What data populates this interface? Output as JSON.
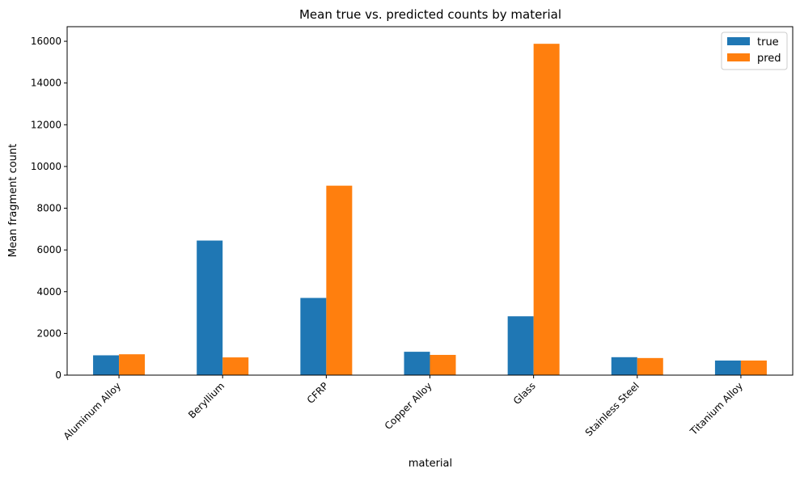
{
  "chart_data": {
    "type": "bar",
    "title": "Mean true vs. predicted counts by material",
    "xlabel": "material",
    "ylabel": "Mean fragment count",
    "categories": [
      "Aluminum Alloy",
      "Beryllium",
      "CFRP",
      "Copper Alloy",
      "Glass",
      "Stainless Steel",
      "Titanium Alloy"
    ],
    "series": [
      {
        "name": "true",
        "color": "#1f77b4",
        "values": [
          950,
          6450,
          3700,
          1120,
          2820,
          860,
          700
        ]
      },
      {
        "name": "pred",
        "color": "#ff7f0e",
        "values": [
          1000,
          850,
          9080,
          970,
          15880,
          820,
          700
        ]
      }
    ],
    "ylim": [
      0,
      16700
    ],
    "yticks": [
      0,
      2000,
      4000,
      6000,
      8000,
      10000,
      12000,
      14000,
      16000
    ],
    "ytick_labels": [
      "0",
      "2000",
      "4000",
      "6000",
      "8000",
      "10000",
      "12000",
      "14000",
      "16000"
    ],
    "grid": false,
    "legend_position": "top-right"
  }
}
